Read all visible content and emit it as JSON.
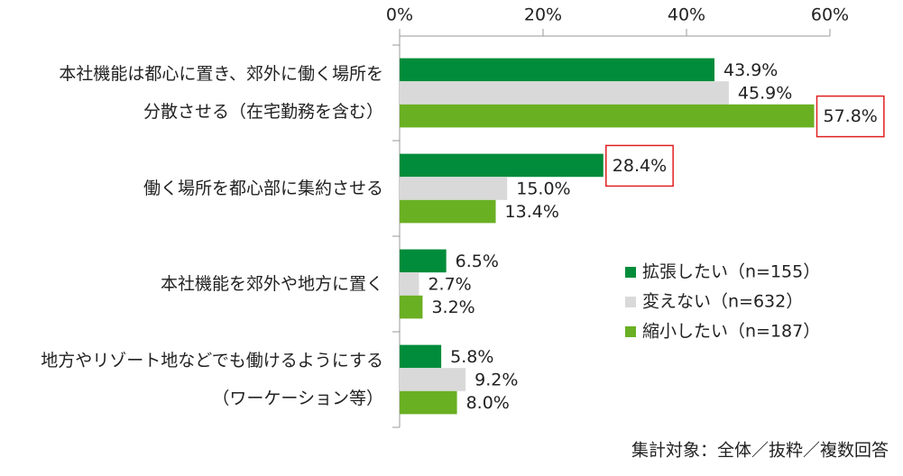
{
  "chart_data": {
    "type": "bar",
    "orientation": "horizontal",
    "categories": [
      "本社機能は都心に置き、郊外に働く場所を\n分散させる（在宅勤務を含む）",
      "働く場所を都心部に集約させる",
      "本社機能を郊外や地方に置く",
      "地方やリゾート地などでも働けるようにする\n（ワーケーション等）"
    ],
    "series": [
      {
        "name": "拡張したい（n=155）",
        "color": "#008c3a",
        "values": [
          43.9,
          28.4,
          6.5,
          5.8
        ],
        "value_labels": [
          "43.9%",
          "28.4%",
          "6.5%",
          "5.8%"
        ]
      },
      {
        "name": "変えない（n=632）",
        "color": "#d9d9d9",
        "values": [
          45.9,
          15.0,
          2.7,
          9.2
        ],
        "value_labels": [
          "45.9%",
          "15.0%",
          "2.7%",
          "9.2%"
        ]
      },
      {
        "name": "縮小したい（n=187）",
        "color": "#6ab023",
        "values": [
          57.8,
          13.4,
          3.2,
          8.0
        ],
        "value_labels": [
          "57.8%",
          "13.4%",
          "3.2%",
          "8.0%"
        ]
      }
    ],
    "xlim": [
      0,
      60
    ],
    "xticks": [
      {
        "value": 0,
        "label": "0%"
      },
      {
        "value": 20,
        "label": "20%"
      },
      {
        "value": 40,
        "label": "40%"
      },
      {
        "value": 60,
        "label": "60%"
      }
    ],
    "highlight": [
      {
        "series": 2,
        "category": 0
      },
      {
        "series": 0,
        "category": 1
      }
    ],
    "highlight_color": "#e02020",
    "note": "集計対象：全体／抜粋／複数回答"
  }
}
